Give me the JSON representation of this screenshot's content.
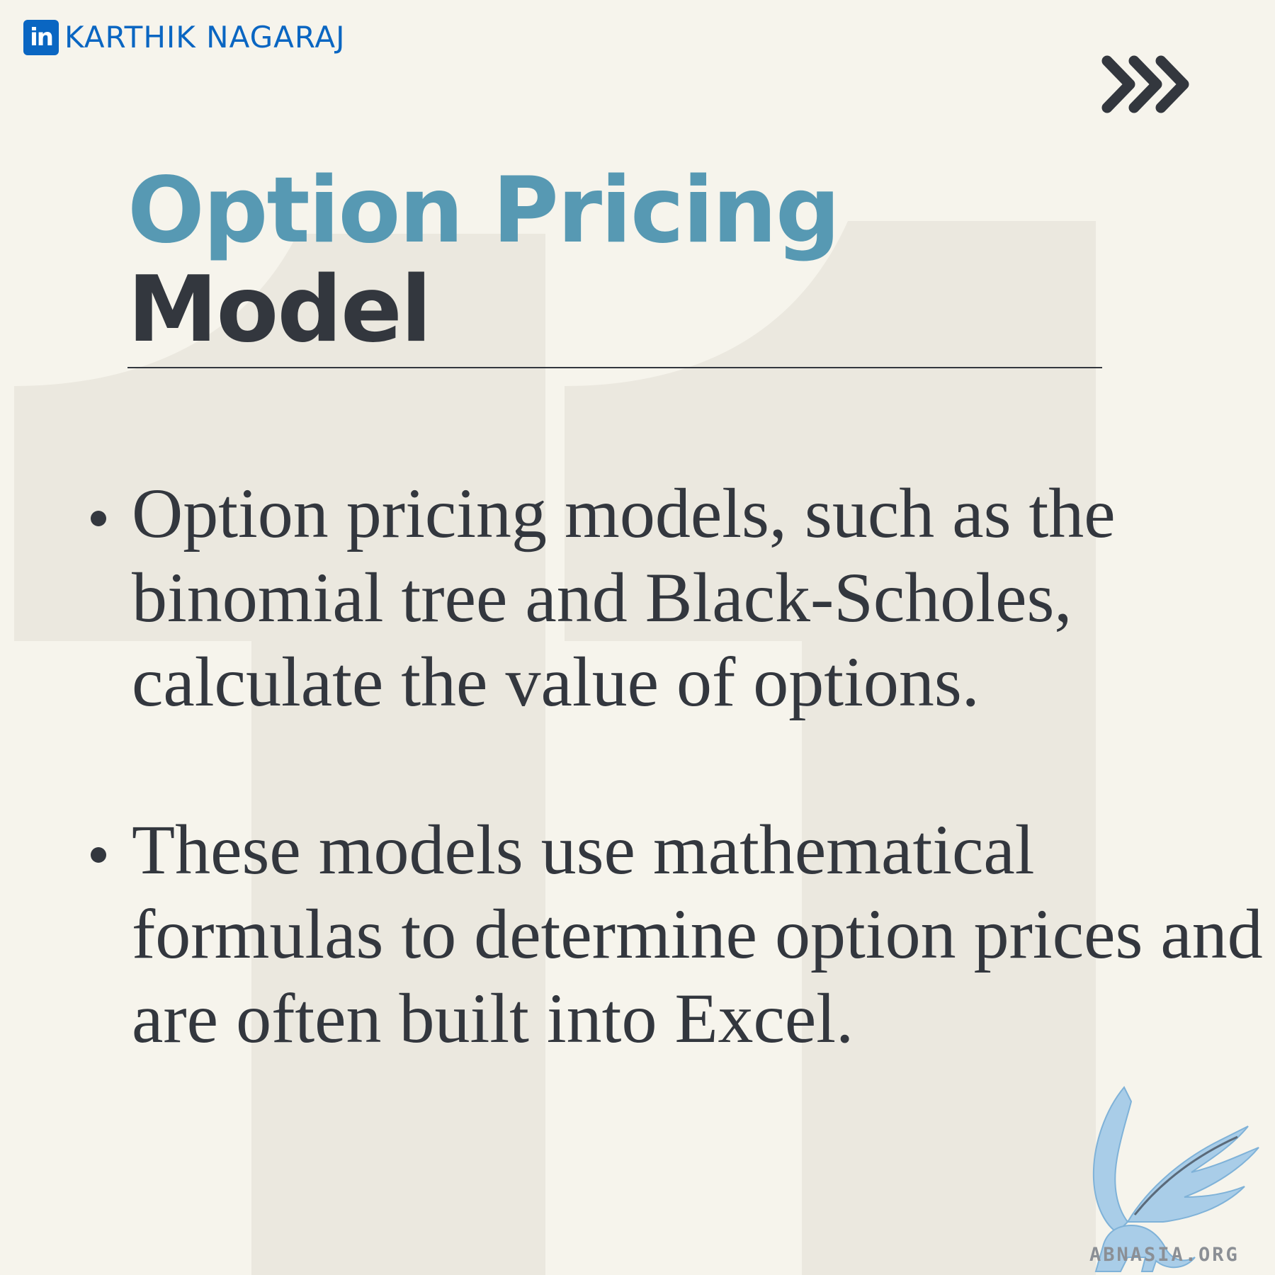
{
  "header": {
    "linkedin_icon_text": "in",
    "author": "KARTHIK NAGARAJ",
    "brand_color": "#0a66c2"
  },
  "icons": {
    "next": "triple-chevron-right-icon",
    "linkedin": "linkedin-icon",
    "watermark": "griffin-logo"
  },
  "title": {
    "line1": "Option Pricing",
    "line2": "Model",
    "accent_color": "#5799b3",
    "text_color": "#33373e"
  },
  "bullets": [
    "Option pricing models, such as the binomial tree and Black-Scholes, calculate the value of options.",
    "These models use mathematical formulas to determine option prices and are often built into Excel."
  ],
  "watermark": {
    "text": "ABNASIA.ORG"
  },
  "background_color": "#f6f4ec"
}
